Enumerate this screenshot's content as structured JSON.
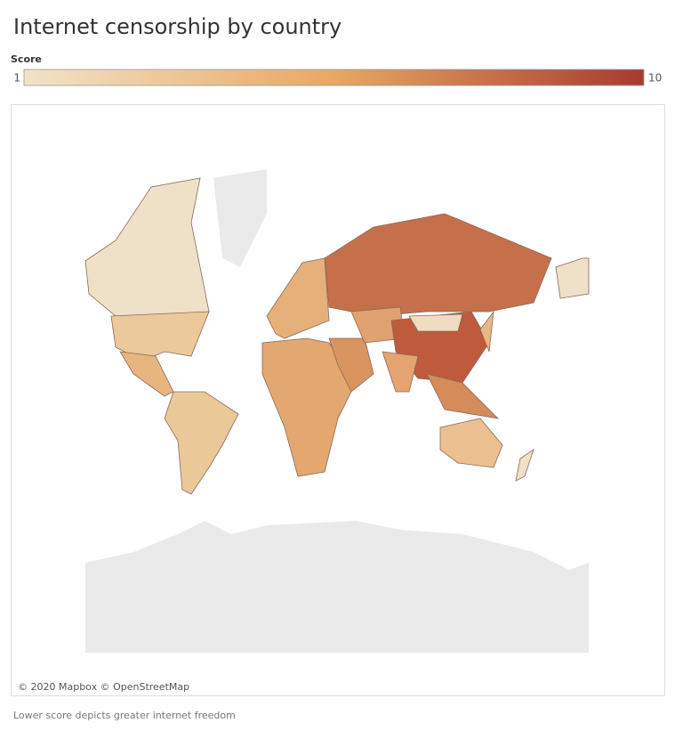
{
  "title": "Internet censorship by country",
  "legend": {
    "title": "Score",
    "min": 1,
    "max": 10,
    "colors": [
      "#f1e3c8",
      "#e8a862",
      "#a83a30"
    ]
  },
  "attribution": "© 2020 Mapbox © OpenStreetMap",
  "footnote": "Lower score depicts greater internet freedom"
}
